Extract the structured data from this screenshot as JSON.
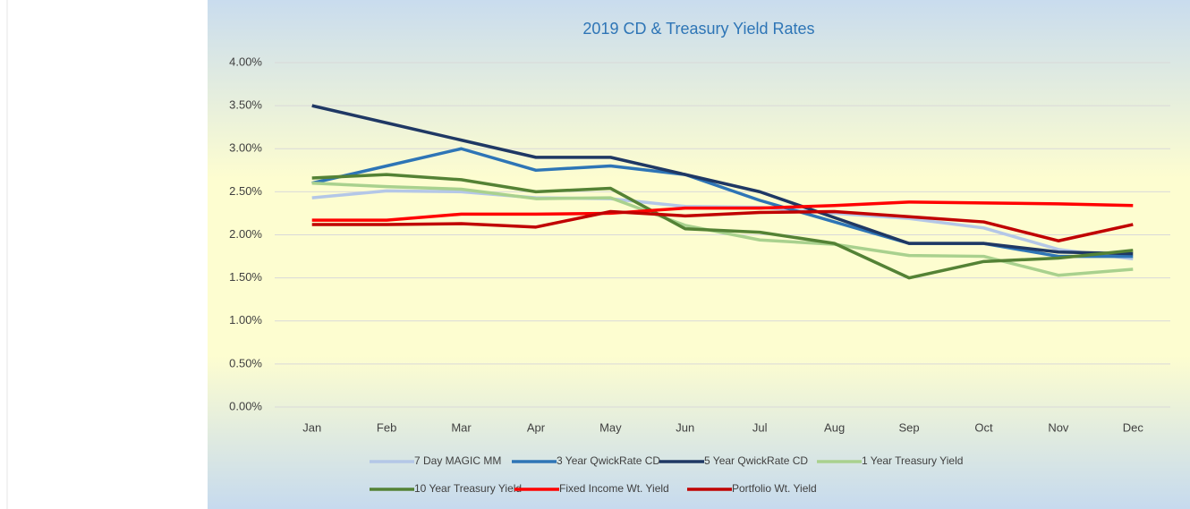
{
  "chart_data": {
    "type": "line",
    "title": "2019 CD & Treasury Yield Rates",
    "categories": [
      "Jan",
      "Feb",
      "Mar",
      "Apr",
      "May",
      "Jun",
      "Jul",
      "Aug",
      "Sep",
      "Oct",
      "Nov",
      "Dec"
    ],
    "series": [
      {
        "name": "7 Day MAGIC MM",
        "color": "#b4c7e7",
        "values": [
          2.43,
          2.51,
          2.5,
          2.43,
          2.42,
          2.33,
          2.32,
          2.25,
          2.19,
          2.08,
          1.83,
          1.72
        ]
      },
      {
        "name": "3 Year QwickRate CD",
        "color": "#2e75b6",
        "values": [
          2.6,
          2.8,
          3.0,
          2.75,
          2.8,
          2.7,
          2.4,
          2.15,
          1.9,
          1.9,
          1.75,
          1.75
        ]
      },
      {
        "name": "5 Year QwickRate CD",
        "color": "#1f3864",
        "values": [
          3.5,
          3.3,
          3.1,
          2.9,
          2.9,
          2.7,
          2.5,
          2.2,
          1.9,
          1.9,
          1.8,
          1.78
        ]
      },
      {
        "name": "1 Year Treasury Yield",
        "color": "#a9d18e",
        "values": [
          2.6,
          2.56,
          2.53,
          2.42,
          2.43,
          2.11,
          1.94,
          1.89,
          1.76,
          1.75,
          1.53,
          1.6
        ]
      },
      {
        "name": "10 Year Treasury Yield",
        "color": "#548235",
        "values": [
          2.66,
          2.7,
          2.64,
          2.5,
          2.54,
          2.07,
          2.03,
          1.9,
          1.5,
          1.69,
          1.73,
          1.82
        ]
      },
      {
        "name": "Fixed Income Wt. Yield",
        "color": "#ff0000",
        "values": [
          2.17,
          2.17,
          2.24,
          2.24,
          2.25,
          2.31,
          2.31,
          2.34,
          2.38,
          2.37,
          2.36,
          2.34
        ]
      },
      {
        "name": "Portfolio Wt. Yield",
        "color": "#c00000",
        "values": [
          2.12,
          2.12,
          2.13,
          2.09,
          2.27,
          2.22,
          2.26,
          2.27,
          2.21,
          2.15,
          1.93,
          2.12
        ]
      }
    ],
    "ylim": [
      0,
      4
    ],
    "yticks": [
      {
        "value": 0,
        "label": "0.00%"
      },
      {
        "value": 0.5,
        "label": "0.50%"
      },
      {
        "value": 1,
        "label": "1.00%"
      },
      {
        "value": 1.5,
        "label": "1.50%"
      },
      {
        "value": 2,
        "label": "2.00%"
      },
      {
        "value": 2.5,
        "label": "2.50%"
      },
      {
        "value": 3,
        "label": "3.00%"
      },
      {
        "value": 3.5,
        "label": "3.50%"
      },
      {
        "value": 4,
        "label": "4.00%"
      }
    ],
    "grid": true,
    "legend": "bottom"
  }
}
